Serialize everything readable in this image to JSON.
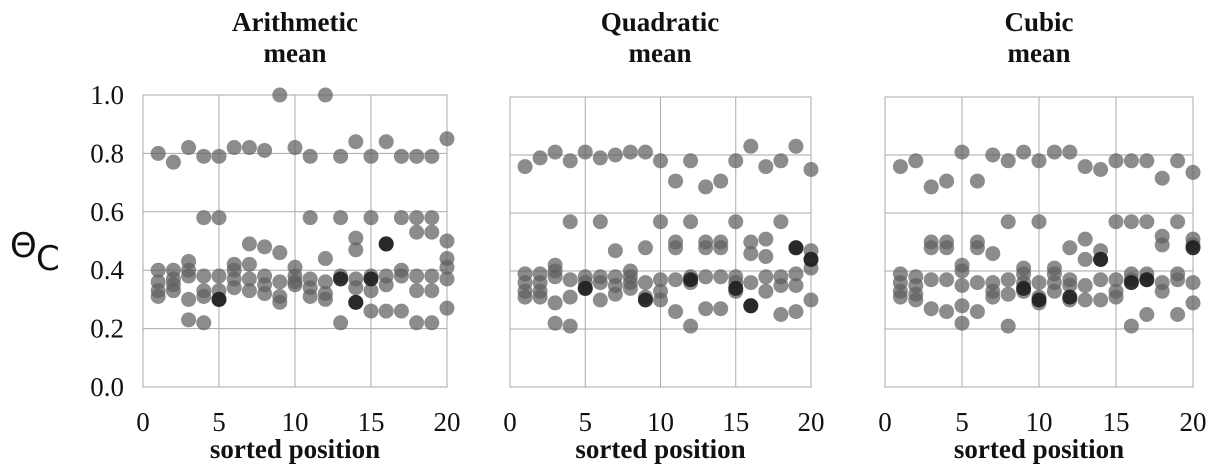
{
  "y_axis_title": "Θ",
  "y_axis_subscript": "C",
  "dot_colors": {
    "normal": "#606060",
    "dark": "#1e1e1e"
  },
  "chart_data": [
    {
      "type": "scatter",
      "title": [
        "Arithmetic",
        "mean"
      ],
      "xlabel": "sorted position",
      "xlim": [
        0,
        20
      ],
      "ylim": [
        0,
        1
      ],
      "xticks": [
        0,
        5,
        10,
        15,
        20
      ],
      "yticks": [
        0.0,
        0.2,
        0.4,
        0.6,
        0.8,
        1.0
      ],
      "ytick_labels": [
        "0.0",
        "0.2",
        "0.4",
        "0.6",
        "0.8",
        "1.0"
      ],
      "points": [
        [
          1,
          0.8
        ],
        [
          1,
          0.4
        ],
        [
          1,
          0.36
        ],
        [
          1,
          0.33
        ],
        [
          1,
          0.31
        ],
        [
          2,
          0.77
        ],
        [
          2,
          0.4
        ],
        [
          2,
          0.37
        ],
        [
          2,
          0.35
        ],
        [
          2,
          0.33
        ],
        [
          3,
          0.82
        ],
        [
          3,
          0.43
        ],
        [
          3,
          0.4
        ],
        [
          3,
          0.38
        ],
        [
          3,
          0.3
        ],
        [
          3,
          0.23
        ],
        [
          4,
          0.79
        ],
        [
          4,
          0.58
        ],
        [
          4,
          0.38
        ],
        [
          4,
          0.33
        ],
        [
          4,
          0.31
        ],
        [
          4,
          0.22
        ],
        [
          5,
          0.79
        ],
        [
          5,
          0.58
        ],
        [
          5,
          0.38
        ],
        [
          5,
          0.33
        ],
        [
          5,
          0.3
        ],
        [
          6,
          0.82
        ],
        [
          6,
          0.42
        ],
        [
          6,
          0.4
        ],
        [
          6,
          0.37
        ],
        [
          6,
          0.34
        ],
        [
          7,
          0.82
        ],
        [
          7,
          0.49
        ],
        [
          7,
          0.42
        ],
        [
          7,
          0.37
        ],
        [
          7,
          0.33
        ],
        [
          8,
          0.81
        ],
        [
          8,
          0.48
        ],
        [
          8,
          0.38
        ],
        [
          8,
          0.35
        ],
        [
          8,
          0.32
        ],
        [
          9,
          1.0
        ],
        [
          9,
          0.46
        ],
        [
          9,
          0.36
        ],
        [
          9,
          0.31
        ],
        [
          9,
          0.29
        ],
        [
          10,
          0.82
        ],
        [
          10,
          0.41
        ],
        [
          10,
          0.38
        ],
        [
          10,
          0.36
        ],
        [
          10,
          0.35
        ],
        [
          11,
          0.79
        ],
        [
          11,
          0.58
        ],
        [
          11,
          0.37
        ],
        [
          11,
          0.34
        ],
        [
          11,
          0.31
        ],
        [
          12,
          1.0
        ],
        [
          12,
          0.44
        ],
        [
          12,
          0.36
        ],
        [
          12,
          0.32
        ],
        [
          12,
          0.3
        ],
        [
          13,
          0.79
        ],
        [
          13,
          0.58
        ],
        [
          13,
          0.38
        ],
        [
          13,
          0.22
        ],
        [
          14,
          0.84
        ],
        [
          14,
          0.51
        ],
        [
          14,
          0.47
        ],
        [
          14,
          0.37
        ],
        [
          14,
          0.34
        ],
        [
          14,
          0.29
        ],
        [
          15,
          0.79
        ],
        [
          15,
          0.58
        ],
        [
          15,
          0.38
        ],
        [
          15,
          0.33
        ],
        [
          15,
          0.26
        ],
        [
          16,
          0.84
        ],
        [
          16,
          0.49
        ],
        [
          16,
          0.38
        ],
        [
          16,
          0.35
        ],
        [
          16,
          0.26
        ],
        [
          17,
          0.79
        ],
        [
          17,
          0.58
        ],
        [
          17,
          0.4
        ],
        [
          17,
          0.38
        ],
        [
          17,
          0.26
        ],
        [
          18,
          0.79
        ],
        [
          18,
          0.58
        ],
        [
          18,
          0.53
        ],
        [
          18,
          0.38
        ],
        [
          18,
          0.33
        ],
        [
          18,
          0.22
        ],
        [
          19,
          0.79
        ],
        [
          19,
          0.58
        ],
        [
          19,
          0.53
        ],
        [
          19,
          0.38
        ],
        [
          19,
          0.33
        ],
        [
          19,
          0.22
        ],
        [
          20,
          0.85
        ],
        [
          20,
          0.5
        ],
        [
          20,
          0.44
        ],
        [
          20,
          0.41
        ],
        [
          20,
          0.37
        ],
        [
          20,
          0.27
        ]
      ],
      "dark_points": [
        [
          5,
          0.3
        ],
        [
          13,
          0.37
        ],
        [
          14,
          0.29
        ],
        [
          16,
          0.49
        ],
        [
          15,
          0.37
        ]
      ]
    },
    {
      "type": "scatter",
      "title": [
        "Quadratic",
        "mean"
      ],
      "xlabel": "sorted position",
      "xlim": [
        0,
        20
      ],
      "ylim": [
        0,
        1
      ],
      "xticks": [
        0,
        5,
        10,
        15,
        20
      ],
      "yticks": [
        0.0,
        0.2,
        0.4,
        0.6,
        0.8,
        1.0
      ],
      "points": [
        [
          1,
          0.76
        ],
        [
          1,
          0.39
        ],
        [
          1,
          0.36
        ],
        [
          1,
          0.33
        ],
        [
          1,
          0.31
        ],
        [
          2,
          0.79
        ],
        [
          2,
          0.39
        ],
        [
          2,
          0.36
        ],
        [
          2,
          0.33
        ],
        [
          2,
          0.31
        ],
        [
          3,
          0.81
        ],
        [
          3,
          0.42
        ],
        [
          3,
          0.4
        ],
        [
          3,
          0.38
        ],
        [
          3,
          0.29
        ],
        [
          3,
          0.22
        ],
        [
          4,
          0.78
        ],
        [
          4,
          0.57
        ],
        [
          4,
          0.37
        ],
        [
          4,
          0.31
        ],
        [
          4,
          0.21
        ],
        [
          5,
          0.81
        ],
        [
          5,
          0.38
        ],
        [
          5,
          0.36
        ],
        [
          5,
          0.34
        ],
        [
          6,
          0.79
        ],
        [
          6,
          0.57
        ],
        [
          6,
          0.38
        ],
        [
          6,
          0.36
        ],
        [
          6,
          0.3
        ],
        [
          7,
          0.8
        ],
        [
          7,
          0.47
        ],
        [
          7,
          0.38
        ],
        [
          7,
          0.35
        ],
        [
          7,
          0.32
        ],
        [
          8,
          0.81
        ],
        [
          8,
          0.4
        ],
        [
          8,
          0.38
        ],
        [
          8,
          0.36
        ],
        [
          8,
          0.34
        ],
        [
          9,
          0.81
        ],
        [
          9,
          0.48
        ],
        [
          9,
          0.36
        ],
        [
          9,
          0.31
        ],
        [
          10,
          0.78
        ],
        [
          10,
          0.57
        ],
        [
          10,
          0.37
        ],
        [
          10,
          0.33
        ],
        [
          10,
          0.3
        ],
        [
          11,
          0.71
        ],
        [
          11,
          0.5
        ],
        [
          11,
          0.48
        ],
        [
          11,
          0.37
        ],
        [
          11,
          0.26
        ],
        [
          12,
          0.78
        ],
        [
          12,
          0.57
        ],
        [
          12,
          0.38
        ],
        [
          12,
          0.36
        ],
        [
          12,
          0.21
        ],
        [
          13,
          0.69
        ],
        [
          13,
          0.5
        ],
        [
          13,
          0.48
        ],
        [
          13,
          0.38
        ],
        [
          13,
          0.27
        ],
        [
          14,
          0.71
        ],
        [
          14,
          0.5
        ],
        [
          14,
          0.48
        ],
        [
          14,
          0.38
        ],
        [
          14,
          0.27
        ],
        [
          15,
          0.78
        ],
        [
          15,
          0.57
        ],
        [
          15,
          0.38
        ],
        [
          15,
          0.36
        ],
        [
          15,
          0.33
        ],
        [
          16,
          0.83
        ],
        [
          16,
          0.5
        ],
        [
          16,
          0.46
        ],
        [
          16,
          0.36
        ],
        [
          16,
          0.28
        ],
        [
          17,
          0.76
        ],
        [
          17,
          0.51
        ],
        [
          17,
          0.45
        ],
        [
          17,
          0.38
        ],
        [
          17,
          0.33
        ],
        [
          18,
          0.78
        ],
        [
          18,
          0.57
        ],
        [
          18,
          0.38
        ],
        [
          18,
          0.35
        ],
        [
          18,
          0.25
        ],
        [
          19,
          0.83
        ],
        [
          19,
          0.48
        ],
        [
          19,
          0.39
        ],
        [
          19,
          0.35
        ],
        [
          19,
          0.26
        ],
        [
          20,
          0.75
        ],
        [
          20,
          0.47
        ],
        [
          20,
          0.44
        ],
        [
          20,
          0.41
        ],
        [
          20,
          0.3
        ]
      ],
      "dark_points": [
        [
          5,
          0.34
        ],
        [
          9,
          0.3
        ],
        [
          12,
          0.37
        ],
        [
          15,
          0.34
        ],
        [
          16,
          0.28
        ],
        [
          19,
          0.48
        ],
        [
          20,
          0.44
        ]
      ]
    },
    {
      "type": "scatter",
      "title": [
        "Cubic",
        "mean"
      ],
      "xlabel": "sorted position",
      "xlim": [
        0,
        20
      ],
      "ylim": [
        0,
        1
      ],
      "xticks": [
        0,
        5,
        10,
        15,
        20
      ],
      "yticks": [
        0.0,
        0.2,
        0.4,
        0.6,
        0.8,
        1.0
      ],
      "points": [
        [
          1,
          0.76
        ],
        [
          1,
          0.39
        ],
        [
          1,
          0.36
        ],
        [
          1,
          0.33
        ],
        [
          1,
          0.31
        ],
        [
          2,
          0.78
        ],
        [
          2,
          0.38
        ],
        [
          2,
          0.35
        ],
        [
          2,
          0.32
        ],
        [
          2,
          0.3
        ],
        [
          3,
          0.69
        ],
        [
          3,
          0.5
        ],
        [
          3,
          0.48
        ],
        [
          3,
          0.37
        ],
        [
          3,
          0.27
        ],
        [
          4,
          0.71
        ],
        [
          4,
          0.5
        ],
        [
          4,
          0.48
        ],
        [
          4,
          0.37
        ],
        [
          4,
          0.26
        ],
        [
          5,
          0.81
        ],
        [
          5,
          0.42
        ],
        [
          5,
          0.4
        ],
        [
          5,
          0.35
        ],
        [
          5,
          0.28
        ],
        [
          5,
          0.22
        ],
        [
          6,
          0.71
        ],
        [
          6,
          0.5
        ],
        [
          6,
          0.48
        ],
        [
          6,
          0.36
        ],
        [
          6,
          0.26
        ],
        [
          7,
          0.8
        ],
        [
          7,
          0.46
        ],
        [
          7,
          0.36
        ],
        [
          7,
          0.33
        ],
        [
          7,
          0.31
        ],
        [
          8,
          0.78
        ],
        [
          8,
          0.57
        ],
        [
          8,
          0.37
        ],
        [
          8,
          0.32
        ],
        [
          8,
          0.21
        ],
        [
          9,
          0.81
        ],
        [
          9,
          0.41
        ],
        [
          9,
          0.39
        ],
        [
          9,
          0.36
        ],
        [
          9,
          0.33
        ],
        [
          10,
          0.78
        ],
        [
          10,
          0.57
        ],
        [
          10,
          0.36
        ],
        [
          10,
          0.31
        ],
        [
          10,
          0.29
        ],
        [
          11,
          0.81
        ],
        [
          11,
          0.41
        ],
        [
          11,
          0.39
        ],
        [
          11,
          0.36
        ],
        [
          11,
          0.33
        ],
        [
          12,
          0.81
        ],
        [
          12,
          0.48
        ],
        [
          12,
          0.37
        ],
        [
          12,
          0.35
        ],
        [
          12,
          0.3
        ],
        [
          13,
          0.76
        ],
        [
          13,
          0.51
        ],
        [
          13,
          0.44
        ],
        [
          13,
          0.35
        ],
        [
          13,
          0.3
        ],
        [
          14,
          0.75
        ],
        [
          14,
          0.47
        ],
        [
          14,
          0.44
        ],
        [
          14,
          0.37
        ],
        [
          14,
          0.3
        ],
        [
          15,
          0.78
        ],
        [
          15,
          0.57
        ],
        [
          15,
          0.37
        ],
        [
          15,
          0.33
        ],
        [
          15,
          0.31
        ],
        [
          16,
          0.78
        ],
        [
          16,
          0.57
        ],
        [
          16,
          0.39
        ],
        [
          16,
          0.37
        ],
        [
          16,
          0.21
        ],
        [
          17,
          0.78
        ],
        [
          17,
          0.57
        ],
        [
          17,
          0.39
        ],
        [
          17,
          0.37
        ],
        [
          17,
          0.25
        ],
        [
          18,
          0.72
        ],
        [
          18,
          0.52
        ],
        [
          18,
          0.49
        ],
        [
          18,
          0.36
        ],
        [
          18,
          0.33
        ],
        [
          19,
          0.78
        ],
        [
          19,
          0.57
        ],
        [
          19,
          0.39
        ],
        [
          19,
          0.37
        ],
        [
          19,
          0.25
        ],
        [
          20,
          0.74
        ],
        [
          20,
          0.51
        ],
        [
          20,
          0.49
        ],
        [
          20,
          0.36
        ],
        [
          20,
          0.29
        ]
      ],
      "dark_points": [
        [
          9,
          0.34
        ],
        [
          10,
          0.3
        ],
        [
          12,
          0.31
        ],
        [
          14,
          0.44
        ],
        [
          16,
          0.36
        ],
        [
          17,
          0.37
        ],
        [
          20,
          0.48
        ]
      ]
    }
  ]
}
